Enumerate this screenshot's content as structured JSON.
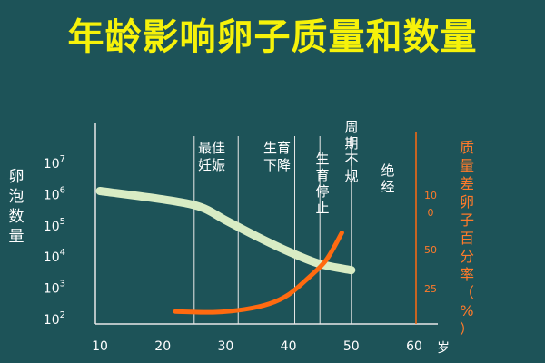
{
  "title": "年龄影响卵子质量和数量",
  "chart_data": {
    "type": "line",
    "xlabel_unit": "岁",
    "x_ticks": [
      10,
      20,
      30,
      40,
      50,
      60
    ],
    "xlim": [
      10,
      60
    ],
    "left_axis": {
      "label": "卵泡数量",
      "scale": "log",
      "tick_labels": [
        {
          "base": "10",
          "exp": "2",
          "value": 100
        },
        {
          "base": "10",
          "exp": "3",
          "value": 1000
        },
        {
          "base": "10",
          "exp": "4",
          "value": 10000
        },
        {
          "base": "10",
          "exp": "5",
          "value": 100000
        },
        {
          "base": "10",
          "exp": "6",
          "value": 1000000
        },
        {
          "base": "10",
          "exp": "7",
          "value": 10000000
        }
      ],
      "ylim": [
        100,
        10000000
      ]
    },
    "right_axis": {
      "label": "质量差卵子百分率（%）",
      "ticks": [
        "25",
        "50",
        "0",
        "10"
      ]
    },
    "stages": [
      {
        "label": "最佳妊娠",
        "boundary": 25
      },
      {
        "label": "生育下降",
        "boundary": 32
      },
      {
        "label": "生育停止",
        "boundary": 41
      },
      {
        "label": "周期不规",
        "boundary": 45
      },
      {
        "label": "绝经",
        "boundary": 50
      }
    ],
    "series": [
      {
        "key": "follicles",
        "color": "#d8ecc4",
        "points": [
          [
            10,
            1300000
          ],
          [
            20,
            700000
          ],
          [
            26,
            400000
          ],
          [
            30,
            150000
          ],
          [
            35,
            45000
          ],
          [
            40,
            15000
          ],
          [
            45,
            6000
          ],
          [
            50,
            3800
          ]
        ]
      },
      {
        "key": "poor_quality",
        "color": "#ff6a10",
        "points": [
          [
            22,
            180
          ],
          [
            28,
            170
          ],
          [
            33,
            210
          ],
          [
            37,
            320
          ],
          [
            40,
            620
          ],
          [
            43,
            2000
          ],
          [
            46,
            8000
          ],
          [
            48.5,
            60000
          ]
        ]
      }
    ]
  }
}
